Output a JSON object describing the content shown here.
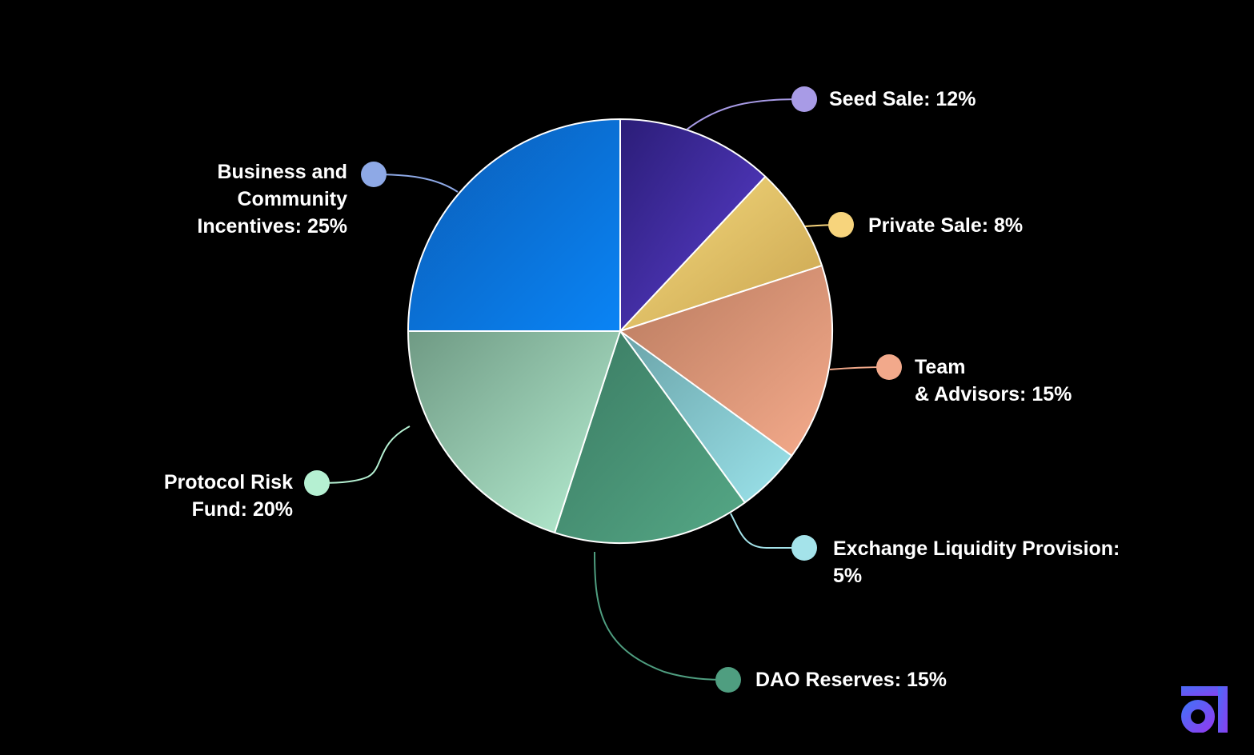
{
  "chart_data": {
    "type": "pie",
    "title": "",
    "start_angle_deg": 0,
    "direction": "clockwise",
    "slices": [
      {
        "key": "seed",
        "label_lines": [
          "Seed Sale: 12%"
        ],
        "value": 12,
        "colors": [
          "#2b1d78",
          "#5b3fd0"
        ],
        "dot": "#a89be6",
        "line": "#a89be6"
      },
      {
        "key": "private",
        "label_lines": [
          "Private Sale: 8%"
        ],
        "value": 8,
        "colors": [
          "#c9a34f",
          "#f5db7e"
        ],
        "dot": "#f7d47c",
        "line": "#f7d47c"
      },
      {
        "key": "team",
        "label_lines": [
          "Team",
          "& Advisors: 15%"
        ],
        "value": 15,
        "colors": [
          "#b87a5e",
          "#f5ab8c"
        ],
        "dot": "#f2a98b",
        "line": "#f2a98b"
      },
      {
        "key": "exchange",
        "label_lines": [
          "Exchange Liquidity Provision:",
          "5%"
        ],
        "value": 5,
        "colors": [
          "#6aa3a8",
          "#9be3eb"
        ],
        "dot": "#a4e3ea",
        "line": "#a4e3ea"
      },
      {
        "key": "dao",
        "label_lines": [
          "DAO Reserves: 15%"
        ],
        "value": 15,
        "colors": [
          "#3a7a62",
          "#55a886"
        ],
        "dot": "#4f9e80",
        "line": "#4f9e80"
      },
      {
        "key": "protocol",
        "label_lines": [
          "Protocol Risk",
          "Fund: 20%"
        ],
        "value": 20,
        "colors": [
          "#6f9a84",
          "#b8f0d4"
        ],
        "dot": "#b5f0d2",
        "line": "#b5f0d2"
      },
      {
        "key": "business",
        "label_lines": [
          "Business and",
          "Community",
          "Incentives: 25%"
        ],
        "value": 25,
        "colors": [
          "#0b5cb5",
          "#0a84f5"
        ],
        "dot": "#8ea9e6",
        "line": "#8ea9e6"
      }
    ]
  },
  "branding": {
    "logo_icon": "brand-logo-icon",
    "logo_colors": [
      "#4a6cf7",
      "#8a3ff0"
    ]
  }
}
